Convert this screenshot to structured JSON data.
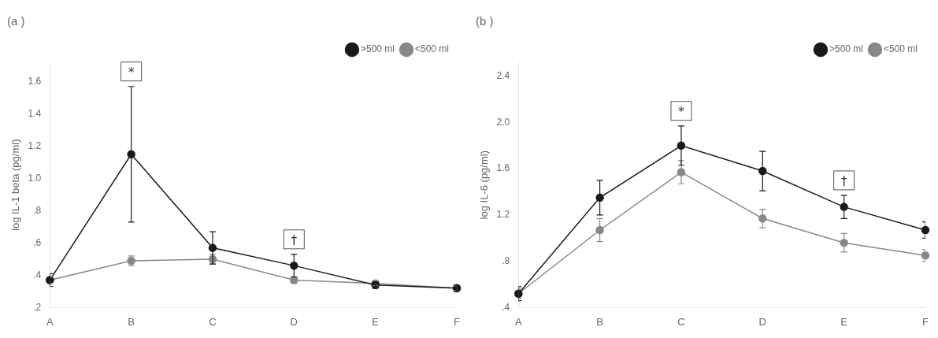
{
  "chart_data": [
    {
      "type": "line",
      "title": "(a )",
      "y_label": "log IL-1 beta (pg/ml)",
      "categories": [
        "A",
        "B",
        "C",
        "D",
        "E",
        "F"
      ],
      "series": [
        {
          "name": ">500 ml",
          "color": "#1a1a1a",
          "values": [
            0.37,
            1.15,
            0.57,
            0.46,
            0.34,
            0.32
          ],
          "errors": [
            0.04,
            0.42,
            0.1,
            0.07,
            0.02,
            0.02
          ]
        },
        {
          "name": "<500 ml",
          "color": "#888888",
          "values": [
            0.37,
            0.49,
            0.5,
            0.37,
            0.35,
            0.32
          ],
          "errors": [
            0.02,
            0.03,
            0.03,
            0.02,
            0.015,
            0.015
          ]
        }
      ],
      "ylim": [
        0.2,
        1.72
      ],
      "yticks": [
        {
          "value": 0.2,
          "label": ".2"
        },
        {
          "value": 0.4,
          "label": ".4"
        },
        {
          "value": 0.6,
          "label": ".6"
        },
        {
          "value": 0.8,
          "label": ".8"
        },
        {
          "value": 1.0,
          "label": "1.0"
        },
        {
          "value": 1.2,
          "label": "1.2"
        },
        {
          "value": 1.4,
          "label": "1.4"
        },
        {
          "value": 1.6,
          "label": "1.6"
        }
      ],
      "grid": false,
      "legend": "upper right",
      "marker": "circle",
      "annotations": [
        {
          "text": "*",
          "category": "B"
        },
        {
          "text": "†",
          "category": "D"
        }
      ]
    },
    {
      "type": "line",
      "title": "(b )",
      "y_label": "log IL-6 (pg/ml)",
      "categories": [
        "A",
        "B",
        "C",
        "D",
        "E",
        "F"
      ],
      "series": [
        {
          "name": ">500 ml",
          "color": "#1a1a1a",
          "values": [
            0.52,
            1.35,
            1.8,
            1.58,
            1.27,
            1.07
          ],
          "errors": [
            0.06,
            0.15,
            0.17,
            0.17,
            0.1,
            0.07
          ]
        },
        {
          "name": "<500 ml",
          "color": "#888888",
          "values": [
            0.52,
            1.07,
            1.57,
            1.17,
            0.96,
            0.85
          ],
          "errors": [
            0.04,
            0.1,
            0.1,
            0.08,
            0.08,
            0.05
          ]
        }
      ],
      "ylim": [
        0.4,
        2.52
      ],
      "yticks": [
        {
          "value": 0.4,
          "label": ".4"
        },
        {
          "value": 0.8,
          "label": ".8"
        },
        {
          "value": 1.2,
          "label": "1.2"
        },
        {
          "value": 1.6,
          "label": "1.6"
        },
        {
          "value": 2.0,
          "label": "2.0"
        },
        {
          "value": 2.4,
          "label": "2.4"
        }
      ],
      "grid": false,
      "legend": "upper right",
      "marker": "circle",
      "annotations": [
        {
          "text": "*",
          "category": "C"
        },
        {
          "text": "†",
          "category": "E"
        }
      ]
    }
  ]
}
